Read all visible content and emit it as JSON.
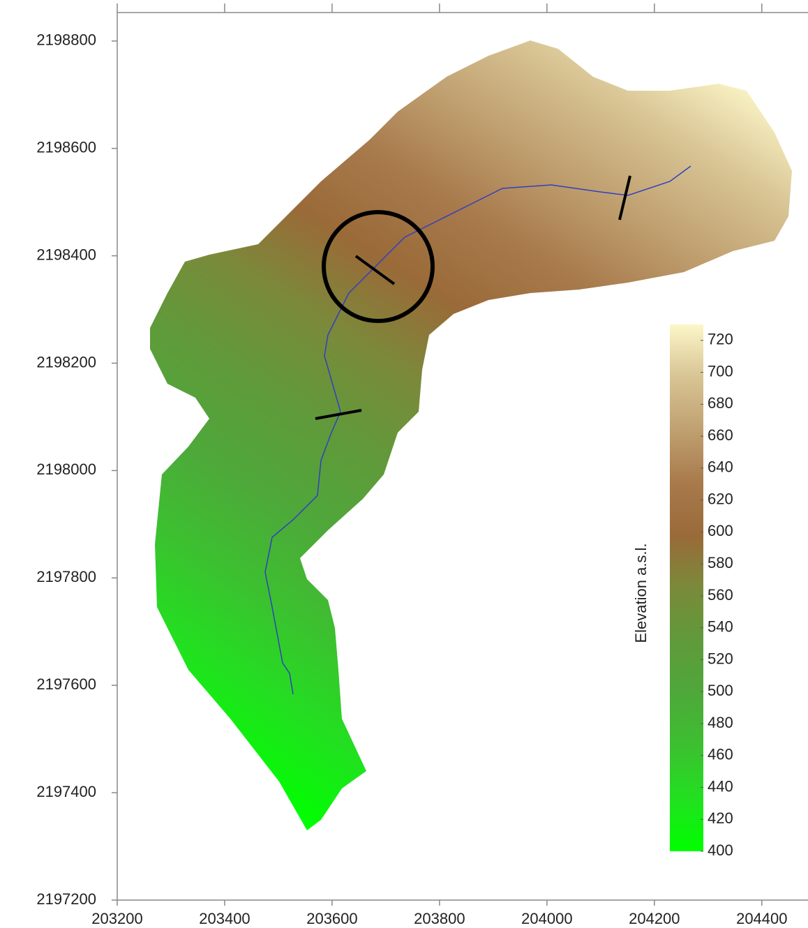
{
  "chart_data": {
    "type": "raster-map",
    "xlim": [
      203200,
      204486
    ],
    "xticks": [
      203200,
      203400,
      203600,
      203800,
      204000,
      204200,
      204400
    ],
    "ylim": [
      2197200,
      2198853
    ],
    "yticks": [
      2197200,
      2197400,
      2197600,
      2197800,
      2198000,
      2198200,
      2198400,
      2198600,
      2198800
    ],
    "colorbar": {
      "label": "Elevation a.s.l.",
      "lim": [
        400,
        730
      ],
      "ticks": [
        400,
        420,
        440,
        460,
        480,
        500,
        520,
        540,
        560,
        580,
        600,
        620,
        640,
        660,
        680,
        700,
        720
      ],
      "colors": [
        "#00ff00",
        "#22e020",
        "#3cc030",
        "#4ea83a",
        "#609a3a",
        "#7a8a3a",
        "#9a6a38",
        "#a87a4c",
        "#c0a070",
        "#d8c494",
        "#fcf6c8"
      ]
    }
  }
}
